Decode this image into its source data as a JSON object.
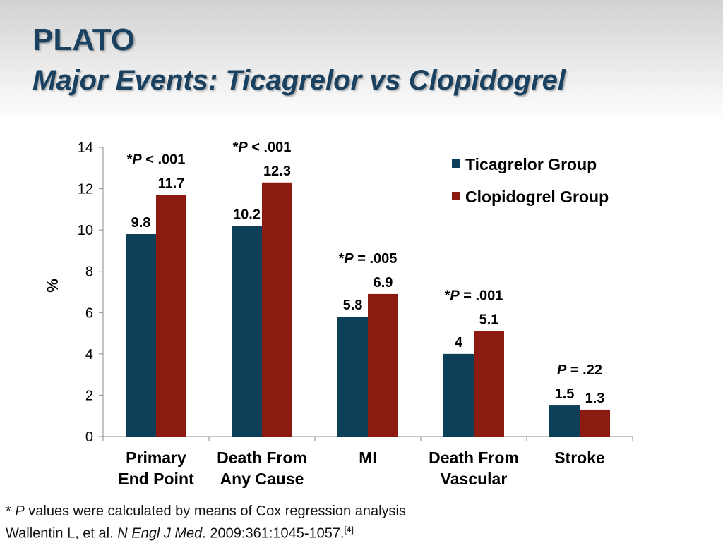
{
  "slide": {
    "title": "PLATO",
    "subtitle": "Major Events: Ticagrelor vs Clopidogrel"
  },
  "colors": {
    "ticagrelor": "#0e3f58",
    "clopidogrel": "#8b1a10",
    "title": "#1a4160"
  },
  "chart_data": {
    "type": "bar",
    "title": "",
    "xlabel": "",
    "ylabel": "%",
    "ylim": [
      0,
      14
    ],
    "yticks": [
      0,
      2,
      4,
      6,
      8,
      10,
      12,
      14
    ],
    "grid": false,
    "legend_position": "top-right",
    "categories": [
      [
        "Primary",
        "End Point"
      ],
      [
        "Death From",
        "Any Cause"
      ],
      [
        "MI"
      ],
      [
        "Death From",
        "Vascular"
      ],
      [
        "Stroke"
      ]
    ],
    "series": [
      {
        "name": "Ticagrelor Group",
        "values": [
          9.8,
          10.2,
          5.8,
          4,
          1.5
        ],
        "labels": [
          "9.8",
          "10.2",
          "5.8",
          "4",
          "1.5"
        ]
      },
      {
        "name": "Clopidogrel Group",
        "values": [
          11.7,
          12.3,
          6.9,
          5.1,
          1.3
        ],
        "labels": [
          "11.7",
          "12.3",
          "6.9",
          "5.1",
          "1.3"
        ]
      }
    ],
    "annotations": [
      {
        "prefix": "*",
        "p": "P",
        "rest": " < .001"
      },
      {
        "prefix": "*",
        "p": "P",
        "rest": " < .001"
      },
      {
        "prefix": "*",
        "p": "P",
        "rest": " = .005"
      },
      {
        "prefix": "*",
        "p": "P",
        "rest": " = .001"
      },
      {
        "prefix": "",
        "p": "P",
        "rest": " = .22"
      }
    ]
  },
  "footnote": {
    "star": "*",
    "p": "P",
    "text": "  values were calculated by means of Cox regression analysis",
    "authors": "Wallentin L, et al. ",
    "journal": "N Engl J Med",
    "citation": ". 2009:361:1045-1057.",
    "ref": "[4]"
  }
}
